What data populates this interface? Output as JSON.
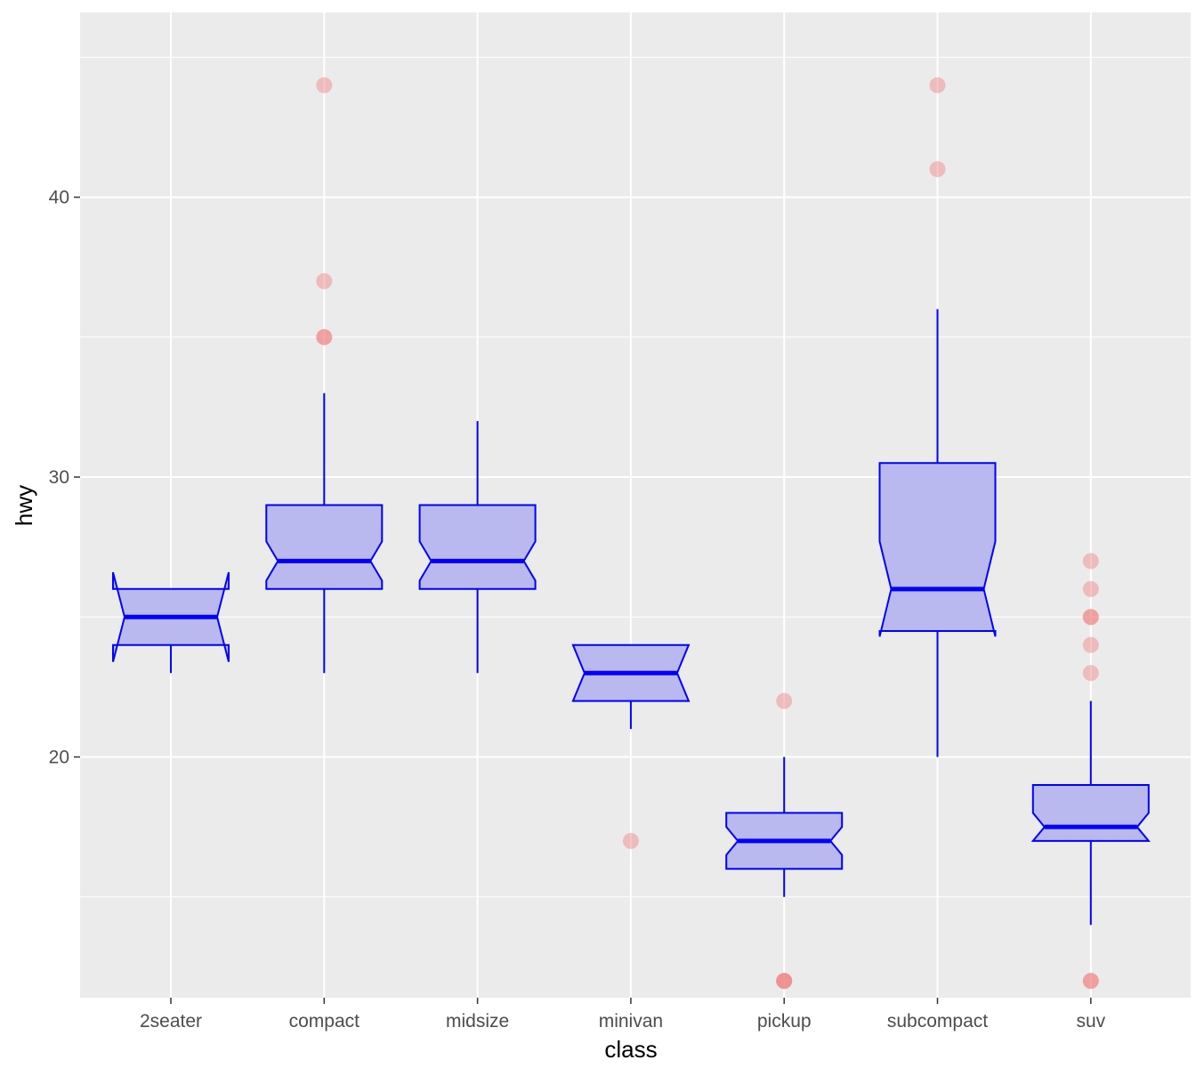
{
  "chart_data": {
    "type": "boxplot",
    "notched": true,
    "xlabel": "class",
    "ylabel": "hwy",
    "categories": [
      "2seater",
      "compact",
      "midsize",
      "minivan",
      "pickup",
      "subcompact",
      "suv"
    ],
    "ylim": [
      11.4,
      46.6
    ],
    "y_ticks": [
      20,
      30,
      40
    ],
    "y_minor_ticks": [
      15,
      25,
      35,
      45
    ],
    "grid": true,
    "boxes": [
      {
        "category": "2seater",
        "lower_whisker": 23,
        "q1": 24,
        "median": 25,
        "q3": 26,
        "upper_whisker": 26,
        "notch_low": 23.4,
        "notch_high": 26.6,
        "outliers": []
      },
      {
        "category": "compact",
        "lower_whisker": 23,
        "q1": 26,
        "median": 27,
        "q3": 29,
        "upper_whisker": 33,
        "notch_low": 26.3,
        "notch_high": 27.7,
        "outliers": [
          35,
          35,
          37,
          44
        ]
      },
      {
        "category": "midsize",
        "lower_whisker": 23,
        "q1": 26,
        "median": 27,
        "q3": 29,
        "upper_whisker": 32,
        "notch_low": 26.3,
        "notch_high": 27.7,
        "outliers": []
      },
      {
        "category": "minivan",
        "lower_whisker": 21,
        "q1": 22,
        "median": 23,
        "q3": 24,
        "upper_whisker": 24,
        "notch_low": 22.0,
        "notch_high": 24.0,
        "outliers": [
          17
        ]
      },
      {
        "category": "pickup",
        "lower_whisker": 15,
        "q1": 16,
        "median": 17,
        "q3": 18,
        "upper_whisker": 20,
        "notch_low": 16.5,
        "notch_high": 17.5,
        "outliers": [
          12,
          12,
          12,
          22
        ]
      },
      {
        "category": "subcompact",
        "lower_whisker": 20,
        "q1": 24.5,
        "median": 26,
        "q3": 30.5,
        "upper_whisker": 36,
        "notch_low": 24.3,
        "notch_high": 27.7,
        "outliers": [
          41,
          44
        ]
      },
      {
        "category": "suv",
        "lower_whisker": 14,
        "q1": 17,
        "median": 17.5,
        "q3": 19,
        "upper_whisker": 22,
        "notch_low": 17.0,
        "notch_high": 18.0,
        "outliers": [
          12,
          12,
          23,
          24,
          25,
          25,
          26,
          27
        ]
      }
    ],
    "colors": {
      "panel_bg": "#ebebeb",
      "grid": "#ffffff",
      "box_fill": "#b9b9f0",
      "box_line": "#0000ff",
      "outlier": "#f08080"
    }
  }
}
